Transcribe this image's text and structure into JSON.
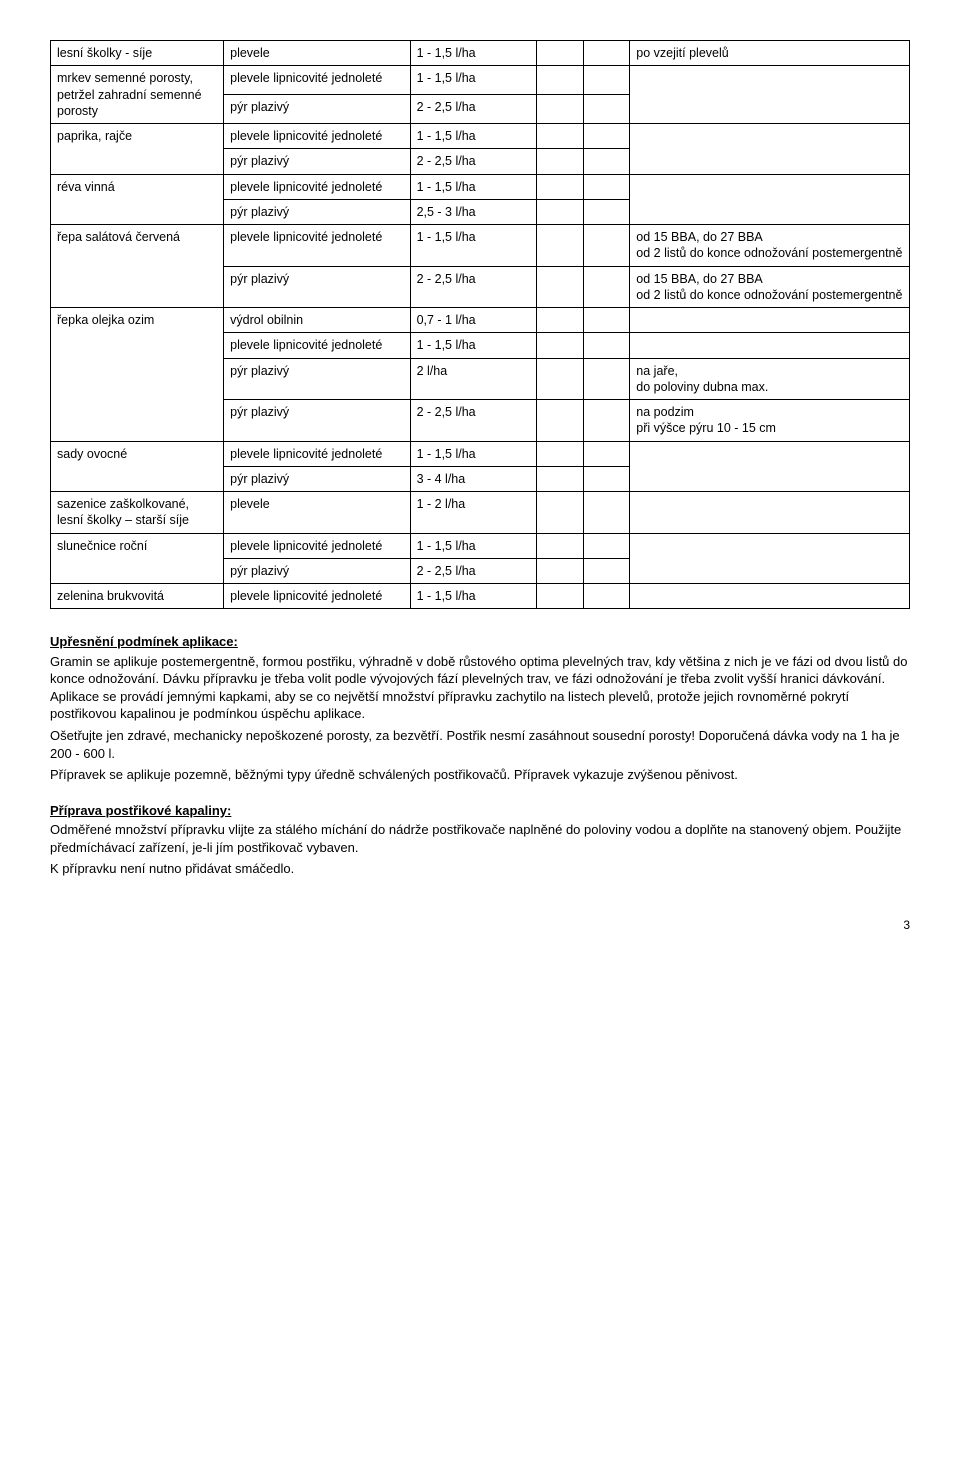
{
  "table": {
    "rows": [
      {
        "c1": "lesní školky - síje",
        "c2": "plevele",
        "c3": "1 - 1,5 l/ha",
        "c4": "",
        "c5": "",
        "c6": "po vzejití plevelů",
        "r1": 1,
        "r6": 1
      },
      {
        "c1": "mrkev semenné porosty, petržel zahradní semenné porosty",
        "c2": "plevele lipnicovité jednoleté",
        "c3": "1 - 1,5 l/ha",
        "c4": "",
        "c5": "",
        "c6": "",
        "r1": 2,
        "r6": 2
      },
      {
        "c2": "pýr plazivý",
        "c3": "2 - 2,5 l/ha",
        "c4": "",
        "c5": ""
      },
      {
        "c1": "paprika, rajče",
        "c2": "plevele lipnicovité jednoleté",
        "c3": "1 - 1,5 l/ha",
        "c4": "",
        "c5": "",
        "c6": "",
        "r1": 2,
        "r6": 2
      },
      {
        "c2": "pýr plazivý",
        "c3": "2 - 2,5 l/ha",
        "c4": "",
        "c5": ""
      },
      {
        "c1": "réva vinná",
        "c2": "plevele lipnicovité jednoleté",
        "c3": "1 - 1,5 l/ha",
        "c4": "",
        "c5": "",
        "c6": "",
        "r1": 2,
        "r6": 2
      },
      {
        "c2": "pýr plazivý",
        "c3": "2,5 - 3 l/ha",
        "c4": "",
        "c5": ""
      },
      {
        "c1": "řepa salátová červená",
        "c2": "plevele lipnicovité jednoleté",
        "c3": "1 - 1,5 l/ha",
        "c4": "",
        "c5": "",
        "c6": "od 15 BBA, do 27 BBA\nod 2 listů do konce odnožování postemergentně",
        "r1": 2
      },
      {
        "c2": "pýr plazivý",
        "c3": "2 - 2,5 l/ha",
        "c4": "",
        "c5": "",
        "c6": "od 15 BBA, do 27 BBA\nod 2 listů do konce odnožování postemergentně"
      },
      {
        "c1": "řepka olejka ozim",
        "c2": "výdrol obilnin",
        "c3": "0,7 - 1 l/ha",
        "c4": "",
        "c5": "",
        "c6": "",
        "r1": 4
      },
      {
        "c2": "plevele lipnicovité jednoleté",
        "c3": "1 - 1,5 l/ha",
        "c4": "",
        "c5": "",
        "c6": ""
      },
      {
        "c2": "pýr plazivý",
        "c3": "2 l/ha",
        "c4": "",
        "c5": "",
        "c6": "na jaře,\ndo poloviny dubna max."
      },
      {
        "c2": "pýr plazivý",
        "c3": "2 - 2,5 l/ha",
        "c4": "",
        "c5": "",
        "c6": "na podzim\npři výšce pýru 10 - 15 cm"
      },
      {
        "c1": "sady ovocné",
        "c2": "plevele lipnicovité jednoleté",
        "c3": "1 - 1,5 l/ha",
        "c4": "",
        "c5": "",
        "c6": "",
        "r1": 2,
        "r6": 2
      },
      {
        "c2": "pýr plazivý",
        "c3": "3 - 4 l/ha",
        "c4": "",
        "c5": ""
      },
      {
        "c1": "sazenice zaškolkované, lesní školky – starší síje",
        "c2": "plevele",
        "c3": "1 - 2 l/ha",
        "c4": "",
        "c5": "",
        "c6": "",
        "r1": 1,
        "r6": 1
      },
      {
        "c1": "slunečnice roční",
        "c2": "plevele lipnicovité jednoleté",
        "c3": "1 - 1,5 l/ha",
        "c4": "",
        "c5": "",
        "c6": "",
        "r1": 2,
        "r6": 2
      },
      {
        "c2": "pýr plazivý",
        "c3": "2 - 2,5 l/ha",
        "c4": "",
        "c5": ""
      },
      {
        "c1": "zelenina brukvovitá",
        "c2": "plevele lipnicovité jednoleté",
        "c3": "1 - 1,5 l/ha",
        "c4": "",
        "c5": "",
        "c6": "",
        "r1": 1,
        "r6": 1
      }
    ]
  },
  "section1": {
    "title": "Upřesnění podmínek aplikace:",
    "p1": "Gramin se aplikuje postemergentně, formou postřiku, výhradně v době růstového optima plevelných trav, kdy většina z nich je ve fázi od dvou listů do konce odnožování. Dávku přípravku je třeba volit podle vývojových fází plevelných trav, ve fázi odnožování je třeba zvolit vyšší hranici dávkování. Aplikace se provádí jemnými kapkami, aby se co největší množství přípravku zachytilo na listech plevelů, protože jejich rovnoměrné pokrytí postřikovou kapalinou je podmínkou úspěchu aplikace.",
    "p2": "Ošetřujte jen zdravé, mechanicky nepoškozené porosty, za bezvětří. Postřik nesmí zasáhnout sousední porosty! Doporučená dávka vody na 1 ha je 200 - 600 l.",
    "p3": "Přípravek se aplikuje pozemně, běžnými typy úředně schválených postřikovačů. Přípravek vykazuje zvýšenou pěnivost."
  },
  "section2": {
    "title": "Příprava postřikové kapaliny:",
    "p1": "Odměřené množství přípravku vlijte za stálého míchání do nádrže postřikovače naplněné do poloviny vodou a doplňte na stanovený objem. Použijte předmíchávací zařízení, je-li jím postřikovač vybaven.",
    "p2": "K přípravku není nutno přidávat smáčedlo."
  },
  "pageNumber": "3"
}
